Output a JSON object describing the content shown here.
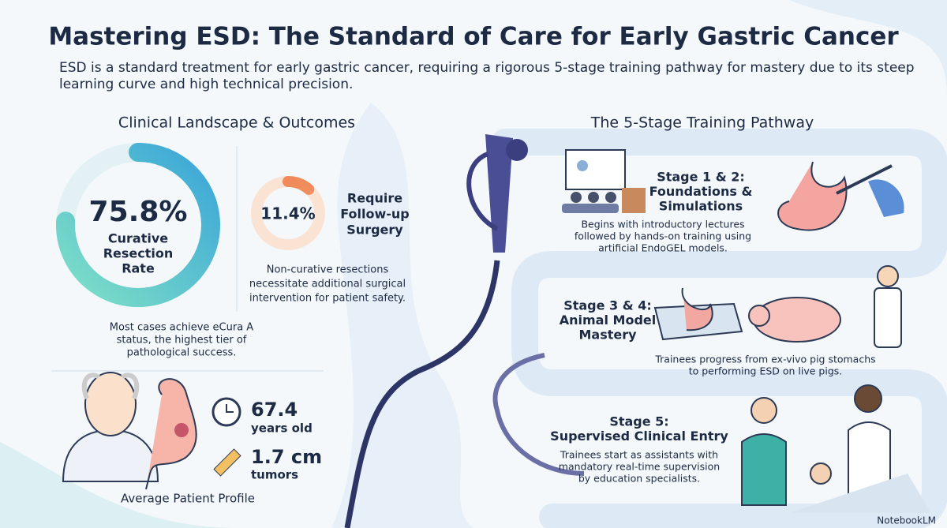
{
  "header": {
    "title": "Mastering ESD: The Standard of Care for Early Gastric Cancer",
    "subtitle": [
      "ESD is a standard treatment for early gastric cancer, requiring a rigorous 5-stage training pathway for mastery due to its steep",
      "learning curve and high technical precision."
    ]
  },
  "left": {
    "heading": "Clinical Landscape & Outcomes",
    "curative": {
      "value": 75.8,
      "label": "75.8%",
      "caption": [
        "Curative",
        "Resection",
        "Rate"
      ],
      "note": [
        "Most cases achieve eCura A",
        "status, the highest tier of",
        "pathological success."
      ]
    },
    "surgery": {
      "value": 11.4,
      "label": "11.4%",
      "caption": [
        "Require",
        "Follow-up",
        "Surgery"
      ],
      "note": [
        "Non-curative resections",
        "necessitate additional surgical",
        "intervention for patient safety."
      ]
    },
    "profile": {
      "age": "67.4",
      "age_unit": "years old",
      "size": "1.7 cm",
      "size_unit": "tumors",
      "caption": "Average Patient Profile"
    }
  },
  "right": {
    "heading": "The 5-Stage Training Pathway",
    "stages": [
      {
        "title": [
          "Stage 1 & 2:",
          "Foundations &",
          "Simulations"
        ],
        "text": [
          "Begins with introductory lectures",
          "followed by hands-on training using",
          "artificial EndoGEL models."
        ]
      },
      {
        "title": [
          "Stage 3 & 4:",
          "Animal Model",
          "Mastery"
        ],
        "text": [
          "Trainees progress from ex-vivo pig stomachs",
          "to performing ESD on live pigs."
        ]
      },
      {
        "title": [
          "Stage 5:",
          "Supervised Clinical Entry"
        ],
        "text": [
          "Trainees start as assistants with",
          "mandatory real-time supervision",
          "by education specialists."
        ]
      }
    ]
  },
  "footer": {
    "brand": "NotebookLM"
  }
}
